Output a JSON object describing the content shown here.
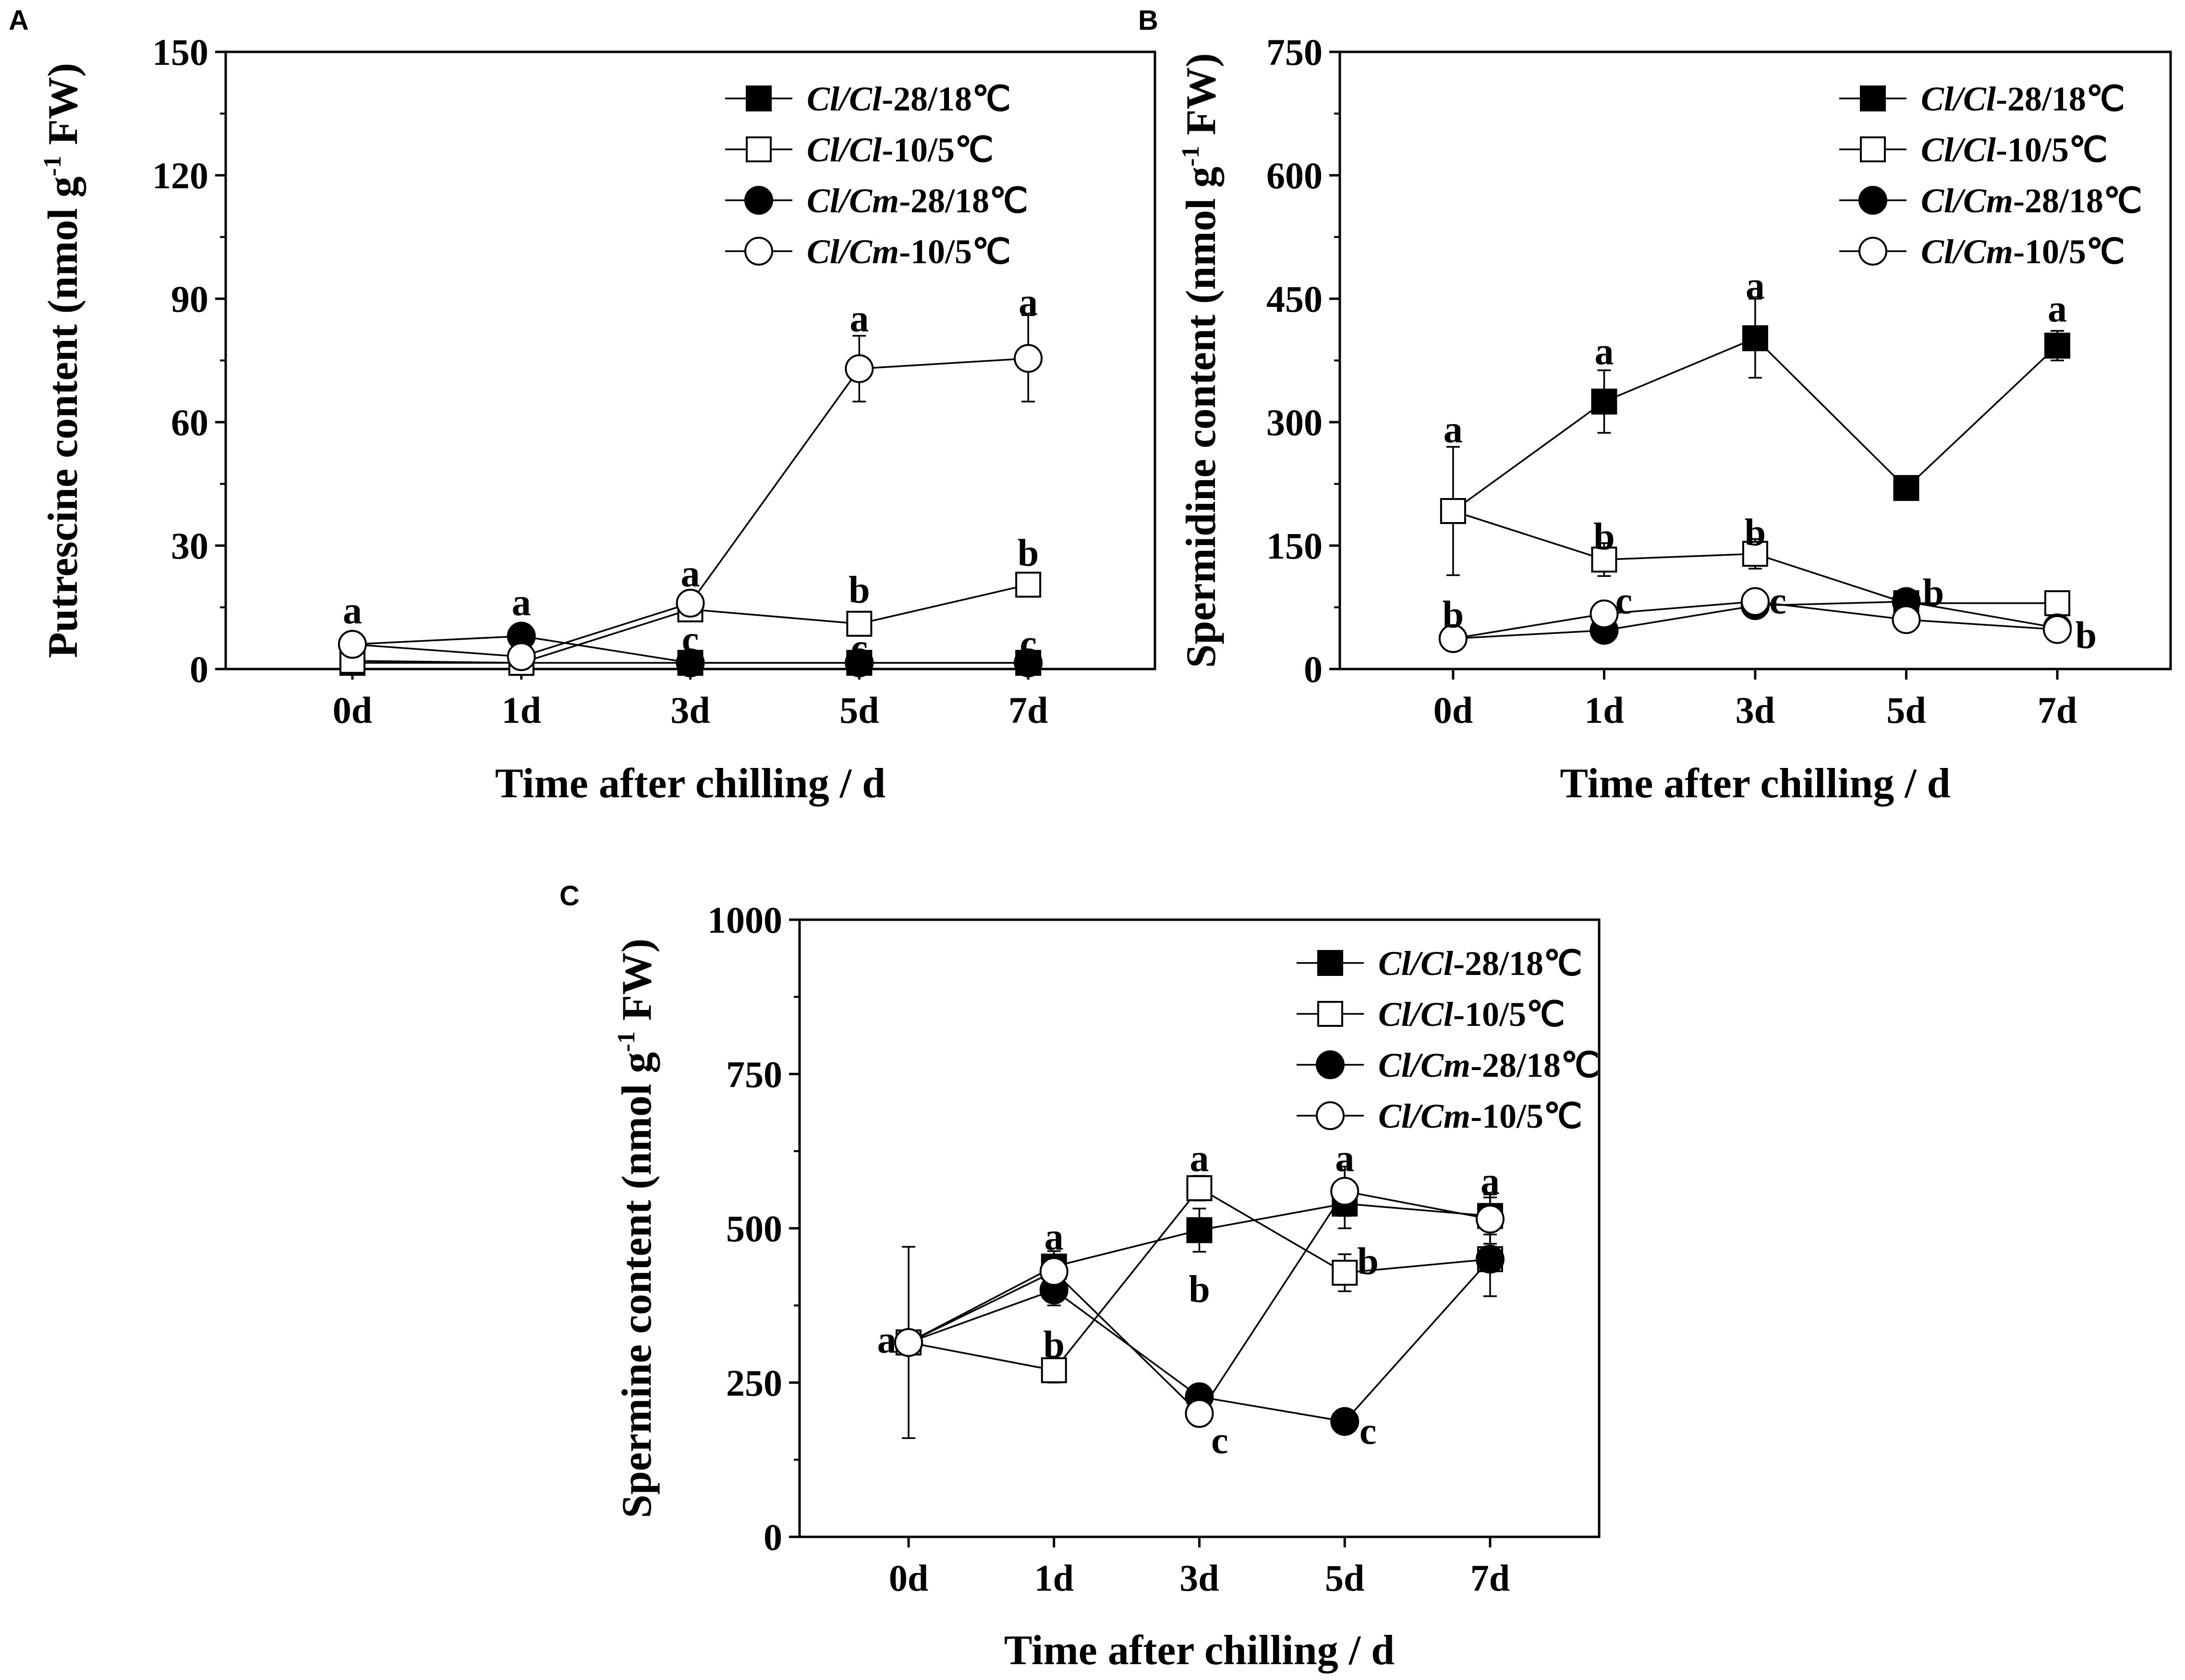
{
  "chart_data": [
    {
      "type": "line",
      "panel": "A",
      "categories": [
        "0d",
        "1d",
        "3d",
        "5d",
        "7d"
      ],
      "xlabel": "Time after chilling / d",
      "ylabel": "Putrescine content (nmol g",
      "ylabel_sup": "-1",
      "ylabel_end": " FW)",
      "ylim": [
        0,
        150
      ],
      "yticks": [
        0,
        30,
        60,
        90,
        120,
        150
      ],
      "series": [
        {
          "name": "Cl/Cl-28/18℃",
          "name_italic": "Cl/Cl",
          "name_rest": "-28/18℃",
          "marker": "filled-square",
          "values": [
            1.5,
            1.5,
            1.5,
            1.5,
            1.5
          ],
          "errors": [
            0.5,
            0.5,
            0.5,
            0.5,
            0.5
          ]
        },
        {
          "name": "Cl/Cl-10/5℃",
          "name_italic": "Cl/Cl",
          "name_rest": "-10/5℃",
          "marker": "open-square",
          "values": [
            2,
            1.5,
            14.5,
            11,
            20.5
          ],
          "errors": [
            1,
            1,
            2.5,
            2.5,
            2.5
          ]
        },
        {
          "name": "Cl/Cm-28/18℃",
          "name_italic": "Cl/Cm",
          "name_rest": "-28/18℃",
          "marker": "filled-circle",
          "values": [
            6,
            8,
            1.5,
            1.5,
            1.5
          ],
          "errors": [
            1,
            1,
            0.5,
            0.5,
            0.5
          ]
        },
        {
          "name": "Cl/Cm-10/5℃",
          "name_italic": "Cl/Cm",
          "name_rest": "-10/5℃",
          "marker": "open-circle",
          "values": [
            6,
            3,
            16,
            73,
            75.5
          ],
          "errors": [
            3,
            3,
            3,
            8,
            10.5
          ]
        }
      ],
      "annotations": [
        {
          "text": "a",
          "x": 0,
          "y": 14
        },
        {
          "text": "a",
          "x": 1,
          "y": 16
        },
        {
          "text": "a",
          "x": 2,
          "y": 23
        },
        {
          "text": "c",
          "x": 2,
          "y": 7
        },
        {
          "text": "a",
          "x": 3,
          "y": 85
        },
        {
          "text": "b",
          "x": 3,
          "y": 19
        },
        {
          "text": "c",
          "x": 3,
          "y": 5
        },
        {
          "text": "a",
          "x": 4,
          "y": 89
        },
        {
          "text": "b",
          "x": 4,
          "y": 28
        },
        {
          "text": "c",
          "x": 4,
          "y": 6
        }
      ],
      "legend_position": "top-right"
    },
    {
      "type": "line",
      "panel": "B",
      "categories": [
        "0d",
        "1d",
        "3d",
        "5d",
        "7d"
      ],
      "xlabel": "Time after chilling / d",
      "ylabel": "Spermidine content (nmol g",
      "ylabel_sup": "-1",
      "ylabel_end": " FW)",
      "ylim": [
        0,
        750
      ],
      "yticks": [
        0,
        150,
        300,
        450,
        600,
        750
      ],
      "series": [
        {
          "name": "Cl/Cl-28/18℃",
          "name_italic": "Cl/Cl",
          "name_rest": "-28/18℃",
          "marker": "filled-square",
          "values": [
            192,
            325,
            402,
            220,
            393
          ],
          "errors": [
            0,
            38,
            48,
            5,
            18
          ]
        },
        {
          "name": "Cl/Cl-10/5℃",
          "name_italic": "Cl/Cl",
          "name_rest": "-10/5℃",
          "marker": "open-square",
          "values": [
            192,
            133,
            140,
            80,
            80
          ],
          "errors": [
            78,
            20,
            18,
            8,
            8
          ]
        },
        {
          "name": "Cl/Cm-28/18℃",
          "name_italic": "Cl/Cm",
          "name_rest": "-28/18℃",
          "marker": "filled-circle",
          "values": [
            37,
            47,
            77,
            82,
            50
          ],
          "errors": [
            8,
            8,
            8,
            8,
            8
          ]
        },
        {
          "name": "Cl/Cm-10/5℃",
          "name_italic": "Cl/Cm",
          "name_rest": "-10/5℃",
          "marker": "open-circle",
          "values": [
            37,
            67,
            82,
            60,
            48
          ],
          "errors": [
            8,
            10,
            10,
            10,
            10
          ]
        }
      ],
      "annotations": [
        {
          "text": "a",
          "x": 0,
          "y": 290
        },
        {
          "text": "b",
          "x": 0,
          "y": 65
        },
        {
          "text": "a",
          "x": 1,
          "y": 385
        },
        {
          "text": "b",
          "x": 1,
          "y": 160
        },
        {
          "text": "c",
          "x": 1.13,
          "y": 82
        },
        {
          "text": "a",
          "x": 2,
          "y": 465
        },
        {
          "text": "b",
          "x": 2,
          "y": 165
        },
        {
          "text": "c",
          "x": 2.15,
          "y": 82
        },
        {
          "text": "b",
          "x": 3.18,
          "y": 92
        },
        {
          "text": "a",
          "x": 4,
          "y": 437
        },
        {
          "text": "b",
          "x": 4.19,
          "y": 40
        }
      ],
      "legend_position": "top-right"
    },
    {
      "type": "line",
      "panel": "C",
      "categories": [
        "0d",
        "1d",
        "3d",
        "5d",
        "7d"
      ],
      "xlabel": "Time after chilling / d",
      "ylabel": "Spermine content (nmol g",
      "ylabel_sup": "-1",
      "ylabel_end": " FW)",
      "ylim": [
        0,
        1000
      ],
      "yticks": [
        0,
        250,
        500,
        750,
        1000
      ],
      "series": [
        {
          "name": "Cl/Cl-28/18℃",
          "name_italic": "Cl/Cl",
          "name_rest": "-28/18℃",
          "marker": "filled-square",
          "values": [
            315,
            438,
            497,
            540,
            520
          ],
          "errors": [
            0,
            25,
            35,
            40,
            30
          ]
        },
        {
          "name": "Cl/Cl-10/5℃",
          "name_italic": "Cl/Cl",
          "name_rest": "-10/5℃",
          "marker": "open-square",
          "values": [
            315,
            270,
            565,
            428,
            450
          ],
          "errors": [
            155,
            20,
            20,
            30,
            60
          ]
        },
        {
          "name": "Cl/Cm-28/18℃",
          "name_italic": "Cl/Cm",
          "name_rest": "-28/18℃",
          "marker": "filled-circle",
          "values": [
            315,
            400,
            227,
            187,
            450
          ],
          "errors": [
            0,
            25,
            20,
            10,
            20
          ]
        },
        {
          "name": "Cl/Cm-10/5℃",
          "name_italic": "Cl/Cm",
          "name_rest": "-10/5℃",
          "marker": "open-circle",
          "values": [
            315,
            430,
            200,
            560,
            515
          ],
          "errors": [
            0,
            20,
            20,
            40,
            40
          ]
        }
      ],
      "annotations": [
        {
          "text": "a",
          "x": -0.15,
          "y": 318
        },
        {
          "text": "a",
          "x": 1,
          "y": 485
        },
        {
          "text": "b",
          "x": 1,
          "y": 310
        },
        {
          "text": "a",
          "x": 2,
          "y": 612
        },
        {
          "text": "b",
          "x": 2,
          "y": 400
        },
        {
          "text": "c",
          "x": 2.14,
          "y": 155
        },
        {
          "text": "a",
          "x": 3,
          "y": 612
        },
        {
          "text": "b",
          "x": 3.16,
          "y": 445
        },
        {
          "text": "c",
          "x": 3.16,
          "y": 170
        },
        {
          "text": "a",
          "x": 4,
          "y": 575
        }
      ],
      "legend_position": "top-right"
    }
  ]
}
